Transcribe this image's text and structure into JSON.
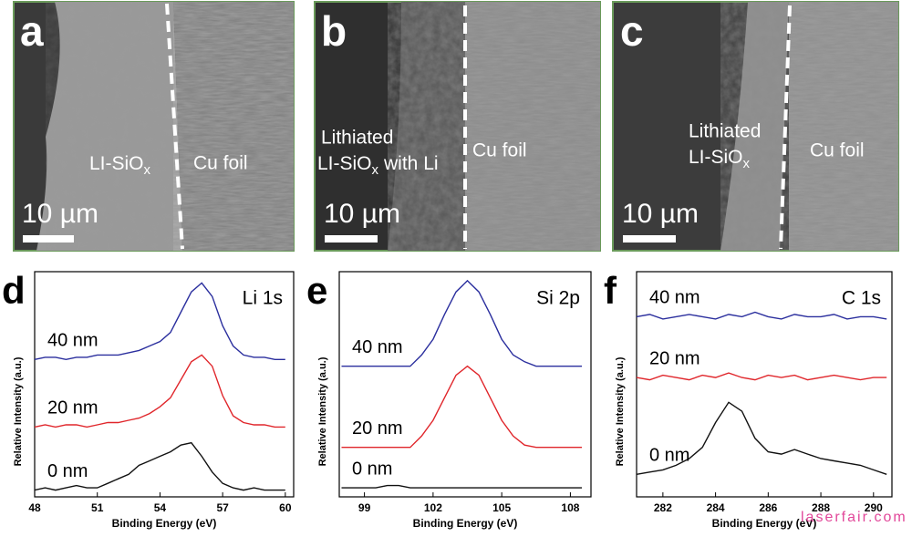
{
  "images": [
    {
      "panel": "a",
      "label_main": "LI-SiO",
      "label_sub": "x",
      "right_label": "Cu foil",
      "scale_bar": "10 µm"
    },
    {
      "panel": "b",
      "label_line1": "Lithiated",
      "label_main": "LI-SiO",
      "label_sub": "x",
      "label_tail": "with Li",
      "right_label": "Cu foil",
      "scale_bar": "10 µm"
    },
    {
      "panel": "c",
      "label_line1": "Lithiated",
      "label_main": "LI-SiO",
      "label_sub": "x",
      "right_label": "Cu foil",
      "scale_bar": "10 µm"
    }
  ],
  "watermark": "laserfair.com",
  "chart_data": [
    {
      "type": "line",
      "panel": "d",
      "label": "Li 1s",
      "x_label": "Binding Energy (eV)",
      "y_label": "Relative Intensity (a.u.)",
      "x": [
        48,
        48.5,
        49,
        49.5,
        50,
        50.5,
        51,
        51.5,
        52,
        52.5,
        53,
        53.5,
        54,
        54.5,
        55,
        55.5,
        56,
        56.5,
        57,
        57.5,
        58,
        58.5,
        59,
        59.5,
        60
      ],
      "xlim": [
        48,
        60.4
      ],
      "xticks": [
        48,
        51,
        54,
        57,
        60
      ],
      "ylim": [
        0,
        100
      ],
      "series": [
        {
          "name": "40 nm",
          "color": "#2b2f9e",
          "values": [
            61,
            62,
            62,
            61,
            62,
            62,
            63,
            63,
            63,
            64,
            65,
            67,
            69,
            73,
            82,
            91,
            95,
            89,
            76,
            67,
            63,
            62,
            62,
            61,
            61
          ]
        },
        {
          "name": "20 nm",
          "color": "#e0262b",
          "values": [
            31,
            32,
            31,
            32,
            32,
            31,
            32,
            33,
            33,
            34,
            35,
            37,
            40,
            44,
            52,
            60,
            63,
            58,
            45,
            36,
            33,
            32,
            32,
            31,
            31
          ]
        },
        {
          "name": "0 nm",
          "color": "#111111",
          "values": [
            3,
            4,
            3,
            4,
            5,
            4,
            4,
            6,
            8,
            10,
            14,
            16,
            18,
            20,
            23,
            24,
            18,
            11,
            6,
            4,
            3,
            4,
            3,
            3,
            3
          ]
        }
      ]
    },
    {
      "type": "line",
      "panel": "e",
      "label": "Si 2p",
      "x_label": "Binding Energy (eV)",
      "y_label": "Relative Intensity (a.u.)",
      "x": [
        98,
        98.5,
        99,
        99.5,
        100,
        100.5,
        101,
        101.5,
        102,
        102.5,
        103,
        103.5,
        104,
        104.5,
        105,
        105.5,
        106,
        106.5,
        107,
        107.5,
        108,
        108.5
      ],
      "xlim": [
        97.9,
        108.9
      ],
      "xticks": [
        99,
        102,
        105,
        108
      ],
      "ylim": [
        0,
        100
      ],
      "series": [
        {
          "name": "40 nm",
          "color": "#2b2f9e",
          "values": [
            58,
            58,
            58,
            58,
            58,
            58,
            58,
            63,
            70,
            81,
            91,
            96,
            91,
            81,
            70,
            63,
            60,
            58,
            58,
            58,
            58,
            58
          ]
        },
        {
          "name": "20 nm",
          "color": "#e0262b",
          "values": [
            22,
            22,
            22,
            22,
            22,
            22,
            22,
            27,
            34,
            44,
            54,
            58,
            54,
            44,
            34,
            27,
            23,
            22,
            22,
            22,
            22,
            22
          ]
        },
        {
          "name": "0 nm",
          "color": "#111111",
          "values": [
            4,
            4,
            4,
            4,
            5,
            5,
            4,
            4,
            4,
            4,
            4,
            4,
            4,
            4,
            4,
            4,
            4,
            4,
            4,
            4,
            4,
            4
          ]
        }
      ]
    },
    {
      "type": "line",
      "panel": "f",
      "label": "C 1s",
      "x_label": "Binding Energy (eV)",
      "y_label": "Relative Intensity (a.u.)",
      "x": [
        281,
        281.5,
        282,
        282.5,
        283,
        283.5,
        284,
        284.5,
        285,
        285.5,
        286,
        286.5,
        287,
        287.5,
        288,
        288.5,
        289,
        289.5,
        290,
        290.5
      ],
      "xlim": [
        281,
        290.7
      ],
      "xticks": [
        282,
        284,
        286,
        288,
        290
      ],
      "ylim": [
        0,
        100
      ],
      "series": [
        {
          "name": "40 nm",
          "color": "#2b2f9e",
          "values": [
            80,
            81,
            79,
            80,
            81,
            80,
            79,
            81,
            80,
            82,
            80,
            79,
            81,
            80,
            80,
            81,
            79,
            80,
            80,
            79
          ]
        },
        {
          "name": "20 nm",
          "color": "#e0262b",
          "values": [
            53,
            52,
            54,
            53,
            52,
            54,
            53,
            55,
            53,
            52,
            54,
            53,
            54,
            52,
            53,
            54,
            53,
            52,
            53,
            53
          ]
        },
        {
          "name": "0 nm",
          "color": "#111111",
          "values": [
            10,
            11,
            12,
            14,
            17,
            22,
            33,
            42,
            38,
            26,
            20,
            19,
            21,
            19,
            17,
            16,
            15,
            14,
            12,
            10
          ]
        }
      ]
    }
  ]
}
